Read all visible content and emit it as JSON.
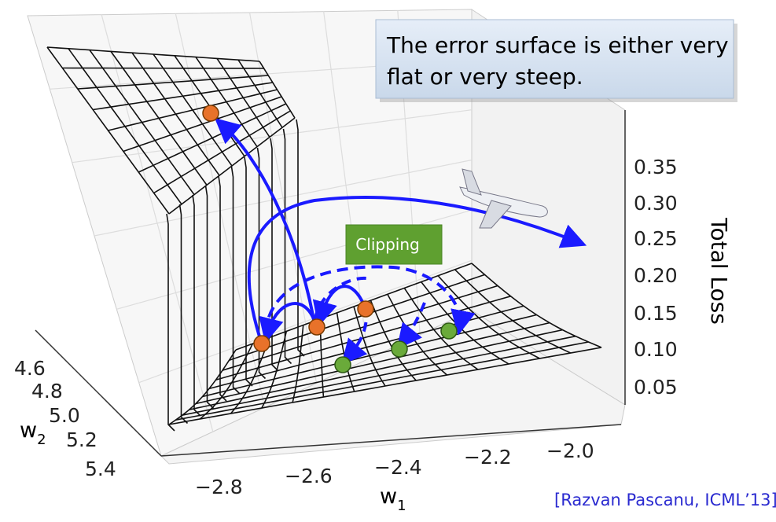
{
  "note_box": {
    "lines": [
      "The error surface is either very",
      "flat or very steep."
    ]
  },
  "clipping_label": "Clipping",
  "z_axis": {
    "label": "Total Loss",
    "ticks": [
      "0.35",
      "0.30",
      "0.25",
      "0.20",
      "0.15",
      "0.10",
      "0.05"
    ]
  },
  "w2_axis": {
    "label": "w",
    "subscript": "2",
    "ticks": [
      "4.6",
      "4.8",
      "5.0",
      "5.2",
      "5.4"
    ]
  },
  "w1_axis": {
    "label": "w",
    "subscript": "1",
    "ticks": [
      "−2.8",
      "−2.6",
      "−2.4",
      "−2.2",
      "−2.0"
    ]
  },
  "citation": "[Razvan Pascanu, ICML’13]"
}
